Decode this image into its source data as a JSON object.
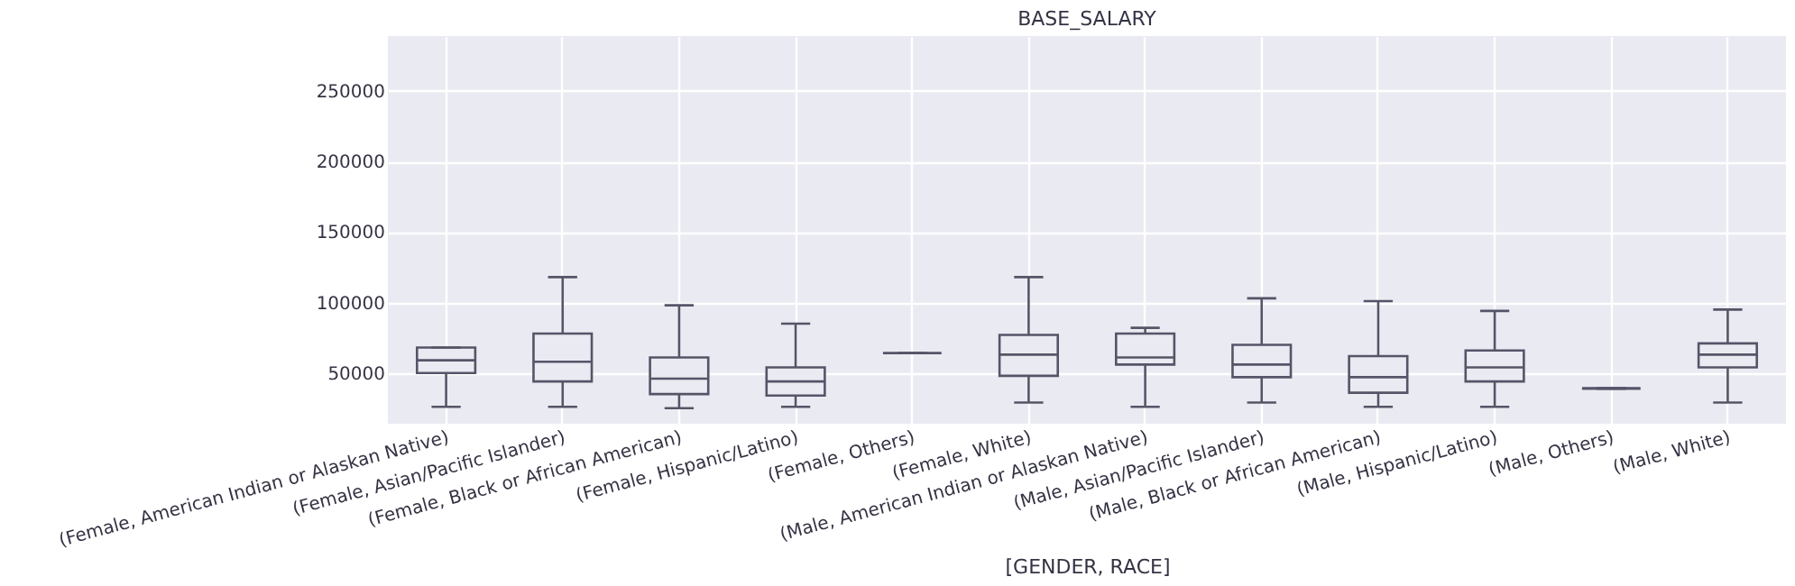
{
  "chart_data": {
    "type": "box",
    "title": "BASE_SALARY",
    "xlabel": "[GENDER, RACE]",
    "categories": [
      "(Female, American Indian or Alaskan Native)",
      "(Female, Asian/Pacific Islander)",
      "(Female, Black or African American)",
      "(Female, Hispanic/Latino)",
      "(Female, Others)",
      "(Female, White)",
      "(Male, American Indian or Alaskan Native)",
      "(Male, Asian/Pacific Islander)",
      "(Male, Black or African American)",
      "(Male, Hispanic/Latino)",
      "(Male, Others)",
      "(Male, White)"
    ],
    "color": "#555568",
    "boxes": [
      {
        "low": 26000,
        "q1": 50000,
        "median": 59000,
        "q3": 68000,
        "high": 68000
      },
      {
        "low": 26000,
        "q1": 44000,
        "median": 58000,
        "q3": 78000,
        "high": 118000
      },
      {
        "low": 25000,
        "q1": 35000,
        "median": 46000,
        "q3": 61000,
        "high": 98000
      },
      {
        "low": 26000,
        "q1": 34000,
        "median": 44000,
        "q3": 54000,
        "high": 85000
      },
      {
        "low": 64000,
        "q1": 64000,
        "median": 64000,
        "q3": 64000,
        "high": 64000
      },
      {
        "low": 29000,
        "q1": 48000,
        "median": 63000,
        "q3": 77000,
        "high": 118000
      },
      {
        "low": 26000,
        "q1": 56000,
        "median": 61000,
        "q3": 78000,
        "high": 82000
      },
      {
        "low": 29000,
        "q1": 47000,
        "median": 56000,
        "q3": 70000,
        "high": 103000
      },
      {
        "low": 26000,
        "q1": 36000,
        "median": 47000,
        "q3": 62000,
        "high": 101000
      },
      {
        "low": 26000,
        "q1": 44000,
        "median": 54000,
        "q3": 66000,
        "high": 94000
      },
      {
        "low": 39000,
        "q1": 39000,
        "median": 39000,
        "q3": 39000,
        "high": 39000
      },
      {
        "low": 29000,
        "q1": 54000,
        "median": 63000,
        "q3": 71000,
        "high": 95000
      }
    ],
    "ylim": [
      14000,
      289000
    ],
    "yticks": [
      50000,
      100000,
      150000,
      200000,
      250000
    ],
    "grid": true
  }
}
